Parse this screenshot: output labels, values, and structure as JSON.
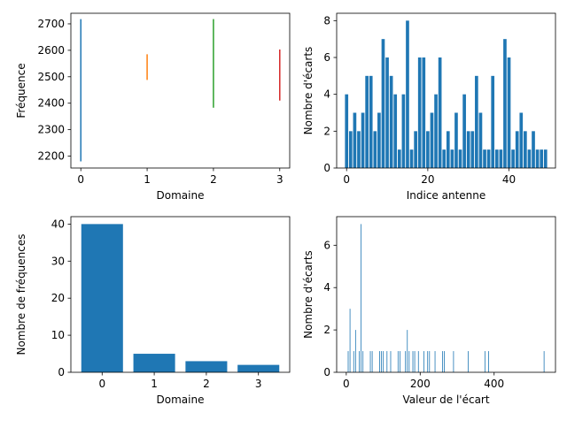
{
  "colors": {
    "blue": "#1f77b4",
    "orange": "#ff7f0e",
    "green": "#2ca02c",
    "red": "#d62728"
  },
  "chart_data": [
    {
      "type": "line",
      "subtype": "vertical-ranges",
      "xlabel": "Domaine",
      "ylabel": "Fréquence",
      "xlim": [
        -0.15,
        3.15
      ],
      "ylim": [
        2155,
        2740
      ],
      "xticks": [
        0,
        1,
        2,
        3
      ],
      "yticks": [
        2200,
        2300,
        2400,
        2500,
        2600,
        2700
      ],
      "series": [
        {
          "x": 0,
          "ymin": 2180,
          "ymax": 2718,
          "color": "#1f77b4"
        },
        {
          "x": 1,
          "ymin": 2488,
          "ymax": 2585,
          "color": "#ff7f0e"
        },
        {
          "x": 2,
          "ymin": 2383,
          "ymax": 2718,
          "color": "#2ca02c"
        },
        {
          "x": 3,
          "ymin": 2410,
          "ymax": 2603,
          "color": "#d62728"
        }
      ]
    },
    {
      "type": "bar",
      "xlabel": "Indice antenne",
      "ylabel": "Nombre d'écarts",
      "xlim": [
        -2.45,
        51.45
      ],
      "ylim": [
        0,
        8.4
      ],
      "xticks": [
        0,
        20,
        40
      ],
      "yticks": [
        0,
        2,
        4,
        6,
        8
      ],
      "categories": [
        0,
        1,
        2,
        3,
        4,
        5,
        6,
        7,
        8,
        9,
        10,
        11,
        12,
        13,
        14,
        15,
        16,
        17,
        18,
        19,
        20,
        21,
        22,
        23,
        24,
        25,
        26,
        27,
        28,
        29,
        30,
        31,
        32,
        33,
        34,
        35,
        36,
        37,
        38,
        39,
        40,
        41,
        42,
        43,
        44,
        45,
        46,
        47,
        48,
        49
      ],
      "values": [
        4,
        2,
        3,
        2,
        3,
        5,
        5,
        2,
        3,
        7,
        6,
        5,
        4,
        1,
        4,
        8,
        1,
        2,
        6,
        6,
        2,
        3,
        4,
        6,
        1,
        2,
        1,
        3,
        1,
        4,
        2,
        2,
        5,
        3,
        1,
        1,
        5,
        1,
        1,
        7,
        6,
        1,
        2,
        3,
        2,
        1,
        2,
        1,
        1,
        1
      ],
      "color": "#1f77b4"
    },
    {
      "type": "bar",
      "xlabel": "Domaine",
      "ylabel": "Nombre de fréquences",
      "xlim": [
        -0.6,
        3.6
      ],
      "ylim": [
        0,
        42
      ],
      "xticks": [
        0,
        1,
        2,
        3
      ],
      "yticks": [
        0,
        10,
        20,
        30,
        40
      ],
      "categories": [
        0,
        1,
        2,
        3
      ],
      "values": [
        40,
        5,
        3,
        2
      ],
      "color": "#1f77b4"
    },
    {
      "type": "bar",
      "xlabel": "Valeur de l'écart",
      "ylabel": "Nombre d'écarts",
      "xlim": [
        -26,
        566
      ],
      "ylim": [
        0,
        7.35
      ],
      "xticks": [
        0,
        200,
        400
      ],
      "yticks": [
        0,
        2,
        4,
        6
      ],
      "x": [
        5,
        10,
        20,
        25,
        35,
        40,
        45,
        65,
        70,
        90,
        95,
        100,
        110,
        120,
        140,
        145,
        160,
        165,
        170,
        180,
        185,
        195,
        210,
        220,
        225,
        240,
        260,
        265,
        290,
        330,
        375,
        385,
        535
      ],
      "values": [
        1,
        3,
        1,
        2,
        1,
        7,
        1,
        1,
        1,
        1,
        1,
        1,
        1,
        1,
        1,
        1,
        1,
        2,
        1,
        1,
        1,
        1,
        1,
        1,
        1,
        1,
        1,
        1,
        1,
        1,
        1,
        1,
        1
      ],
      "color": "#1f77b4"
    }
  ]
}
